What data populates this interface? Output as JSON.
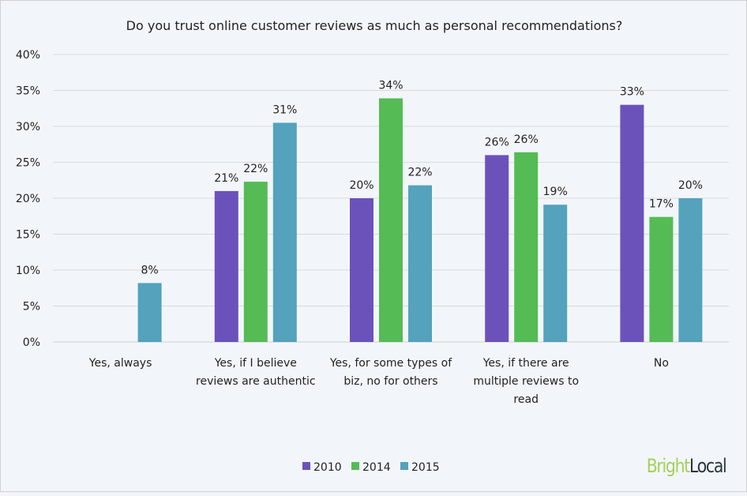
{
  "chart_data": {
    "type": "bar",
    "title": "Do you trust online customer reviews as much as personal recommendations?",
    "categories": [
      [
        "Yes, always"
      ],
      [
        "Yes, if I believe",
        "reviews are authentic"
      ],
      [
        "Yes, for some types of",
        "biz, no for others"
      ],
      [
        "Yes, if there are",
        "multiple reviews to",
        "read"
      ],
      [
        "No"
      ]
    ],
    "series": [
      {
        "name": "2010",
        "color": "#6b52bb",
        "values": [
          null,
          21,
          20,
          26,
          33
        ],
        "labels": [
          "",
          "21%",
          "20%",
          "26%",
          "33%"
        ]
      },
      {
        "name": "2014",
        "color": "#55bb55",
        "values": [
          null,
          22.3,
          33.9,
          26.4,
          17.4
        ],
        "labels": [
          "",
          "22%",
          "34%",
          "26%",
          "17%"
        ]
      },
      {
        "name": "2015",
        "color": "#54a2bc",
        "values": [
          8.2,
          30.5,
          21.8,
          19.1,
          20
        ],
        "labels": [
          "8%",
          "31%",
          "22%",
          "19%",
          "20%"
        ]
      }
    ],
    "ylim": [
      0,
      40
    ],
    "yticks": [
      "0%",
      "5%",
      "10%",
      "15%",
      "20%",
      "25%",
      "30%",
      "35%",
      "40%"
    ],
    "grid": true,
    "legend_placement": "bottom"
  },
  "logo": {
    "part1": "Bright",
    "part2": "Local",
    "color1": "#a6cf5a",
    "color2": "#2a3540"
  }
}
